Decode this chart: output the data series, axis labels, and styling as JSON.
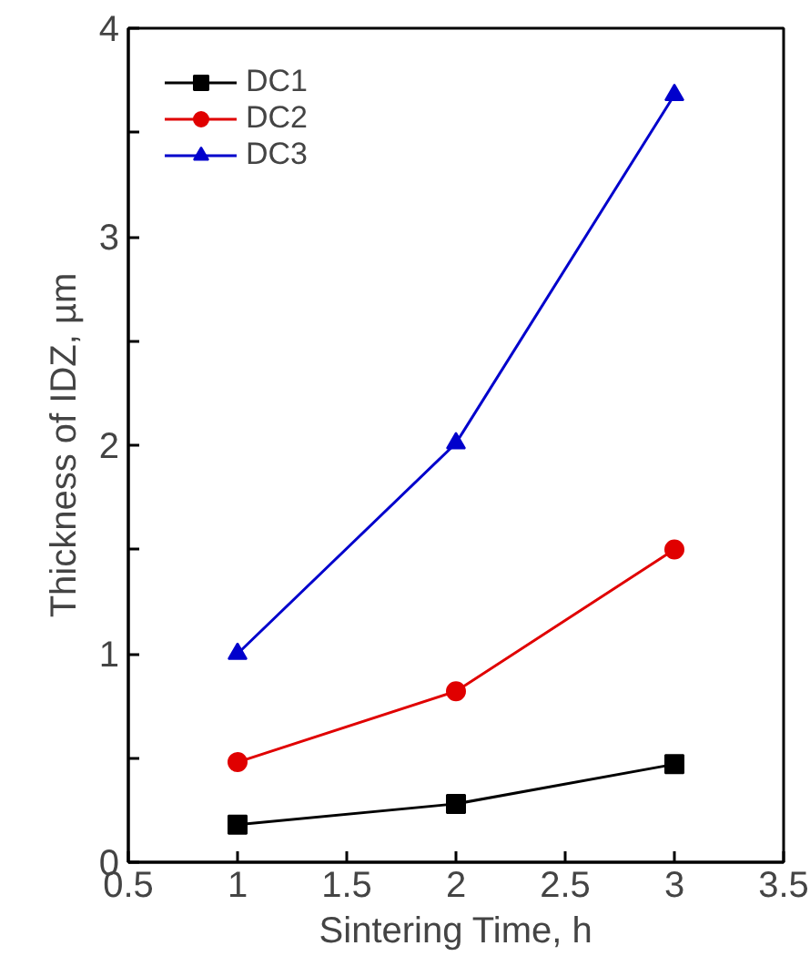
{
  "chart_data": {
    "type": "line",
    "xlabel": "Sintering Time, h",
    "ylabel": "Thickness of IDZ, µm",
    "x": [
      1,
      2,
      3
    ],
    "series": [
      {
        "name": "DC1",
        "color": "#000000",
        "marker": "square",
        "values": [
          0.18,
          0.28,
          0.47
        ]
      },
      {
        "name": "DC2",
        "color": "#e00000",
        "marker": "circle",
        "values": [
          0.48,
          0.82,
          1.5
        ]
      },
      {
        "name": "DC3",
        "color": "#0000cc",
        "marker": "triangle",
        "values": [
          1.0,
          2.01,
          3.68
        ]
      }
    ],
    "xlim": [
      0.5,
      3.5
    ],
    "xticks": [
      0.5,
      1,
      1.5,
      2,
      2.5,
      3,
      3.5
    ],
    "ylim": [
      0,
      4
    ],
    "yticks": [
      0,
      {
        "value": 0.5,
        "label": null
      },
      1,
      {
        "value": 1.5,
        "label": null
      },
      2,
      {
        "value": 2.5,
        "label": null
      },
      3,
      {
        "value": 3.5,
        "label": null
      },
      4
    ],
    "grid": false,
    "legend": "top left",
    "line_style": "solid"
  }
}
